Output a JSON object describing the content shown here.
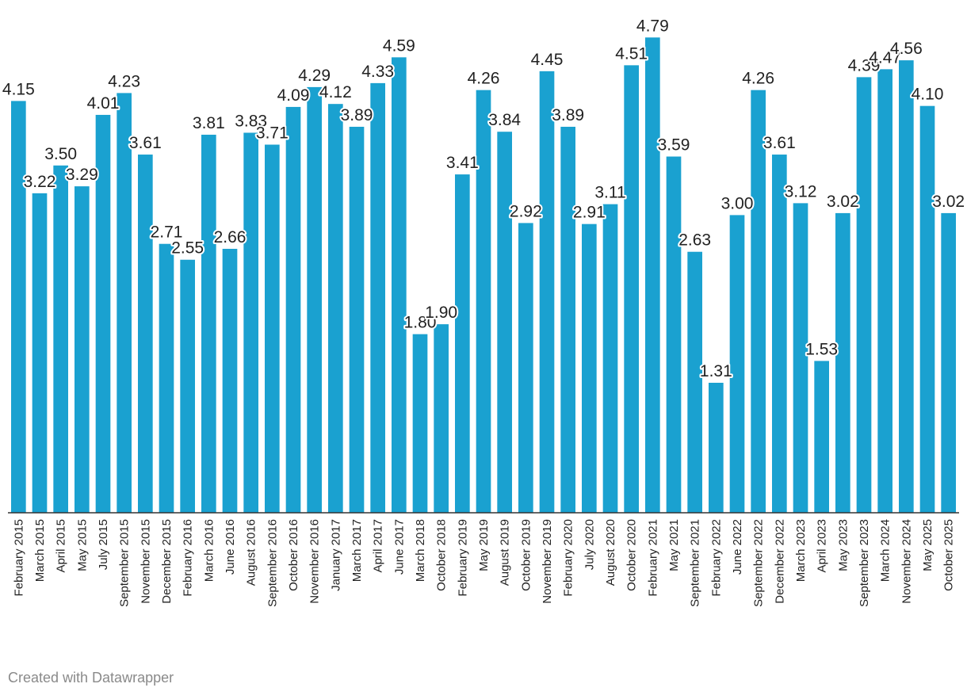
{
  "chart_data": {
    "type": "bar",
    "title": "",
    "xlabel": "",
    "ylabel": "",
    "ylim": [
      0,
      5
    ],
    "bar_color": "#1aa1d0",
    "categories": [
      "February 2015",
      "March 2015",
      "April 2015",
      "May 2015",
      "July 2015",
      "September 2015",
      "November 2015",
      "December 2015",
      "February 2016",
      "March 2016",
      "June 2016",
      "August 2016",
      "September 2016",
      "October 2016",
      "November 2016",
      "January 2017",
      "March 2017",
      "April 2017",
      "June 2017",
      "March 2018",
      "October 2018",
      "February 2019",
      "May 2019",
      "August 2019",
      "October 2019",
      "November 2019",
      "February 2020",
      "July 2020",
      "August 2020",
      "October 2020",
      "February 2021",
      "May 2021",
      "September 2021",
      "February 2022",
      "June 2022",
      "September 2022",
      "December 2022",
      "March 2023",
      "April 2023",
      "May 2023",
      "September 2023",
      "March 2024",
      "November 2024",
      "May 2025",
      "October 2025"
    ],
    "values": [
      4.15,
      3.22,
      3.5,
      3.29,
      4.01,
      4.23,
      3.61,
      2.71,
      2.55,
      3.81,
      2.66,
      3.83,
      3.71,
      4.09,
      4.29,
      4.12,
      3.89,
      4.33,
      4.59,
      1.8,
      1.9,
      3.41,
      4.26,
      3.84,
      2.92,
      4.45,
      3.89,
      2.91,
      3.11,
      4.51,
      4.79,
      3.59,
      2.63,
      1.31,
      3.0,
      4.26,
      3.61,
      3.12,
      1.53,
      3.02,
      4.39,
      4.47,
      4.56,
      4.1,
      3.02
    ],
    "labels": [
      "4.15",
      "3.22",
      "3.50",
      "3.29",
      "4.01",
      "4.23",
      "3.61",
      "2.71",
      "2.55",
      "3.81",
      "2.66",
      "3.83",
      "3.71",
      "4.09",
      "4.29",
      "4.12",
      "3.89",
      "4.33",
      "4.59",
      "1.80",
      "1.90",
      "3.41",
      "4.26",
      "3.84",
      "2.92",
      "4.45",
      "3.89",
      "2.91",
      "3.11",
      "4.51",
      "4.79",
      "3.59",
      "2.63",
      "1.31",
      "3.00",
      "4.26",
      "3.61",
      "3.12",
      "1.53",
      "3.02",
      "4.39",
      "4.47",
      "4.56",
      "4.10",
      "3.02"
    ],
    "grid": false,
    "legend": "none"
  },
  "footer": {
    "credit": "Created with Datawrapper"
  }
}
